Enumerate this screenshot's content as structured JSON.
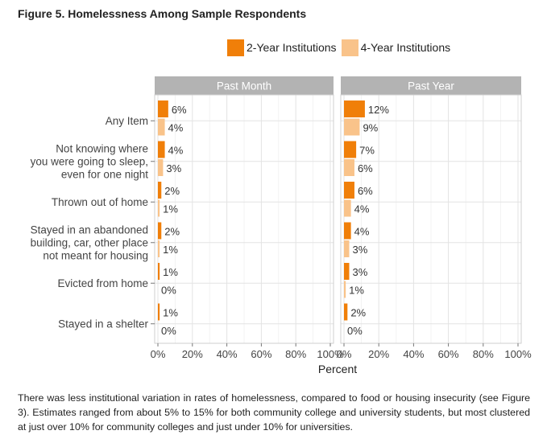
{
  "figure": {
    "title": "Figure 5. Homelessness Among Sample Respondents",
    "caption": "There was less institutional variation in rates of homelessness, compared to food or housing insecurity (see Figure 3). Estimates ranged from about 5% to 15% for both community college and university students, but most clustered at just over 10% for community colleges and just under 10% for universities."
  },
  "legend": {
    "items": [
      {
        "label": "2-Year Institutions",
        "color": "#F07F09"
      },
      {
        "label": "4-Year Institutions",
        "color": "#F9C38A"
      }
    ]
  },
  "chart_data": {
    "type": "bar",
    "orientation": "horizontal",
    "facets": [
      "Past Month",
      "Past Year"
    ],
    "categories": [
      "Any Item",
      "Not knowing where you were going to sleep, even for one night",
      "Thrown out of home",
      "Stayed in an abandoned building, car, other place not meant for housing",
      "Evicted from home",
      "Stayed in a shelter"
    ],
    "category_lines": [
      [
        "Any Item"
      ],
      [
        "Not knowing where",
        "you were going to sleep,",
        "even for one night"
      ],
      [
        "Thrown out of home"
      ],
      [
        "Stayed in an abandoned",
        "building, car, other place",
        "not meant for housing"
      ],
      [
        "Evicted from home"
      ],
      [
        "Stayed in a shelter"
      ]
    ],
    "series": [
      {
        "name": "2-Year Institutions",
        "color": "#F07F09",
        "past_month": [
          6,
          4,
          2,
          2,
          1,
          1
        ],
        "past_year": [
          12,
          7,
          6,
          4,
          3,
          2
        ]
      },
      {
        "name": "4-Year Institutions",
        "color": "#F9C38A",
        "past_month": [
          4,
          3,
          1,
          1,
          0,
          0
        ],
        "past_year": [
          9,
          6,
          4,
          3,
          1,
          0
        ]
      }
    ],
    "xlabel": "Percent",
    "xlim": [
      0,
      100
    ],
    "xticks": [
      "0%",
      "20%",
      "40%",
      "60%",
      "80%",
      "100%"
    ],
    "grid": true,
    "legend_position": "top"
  }
}
